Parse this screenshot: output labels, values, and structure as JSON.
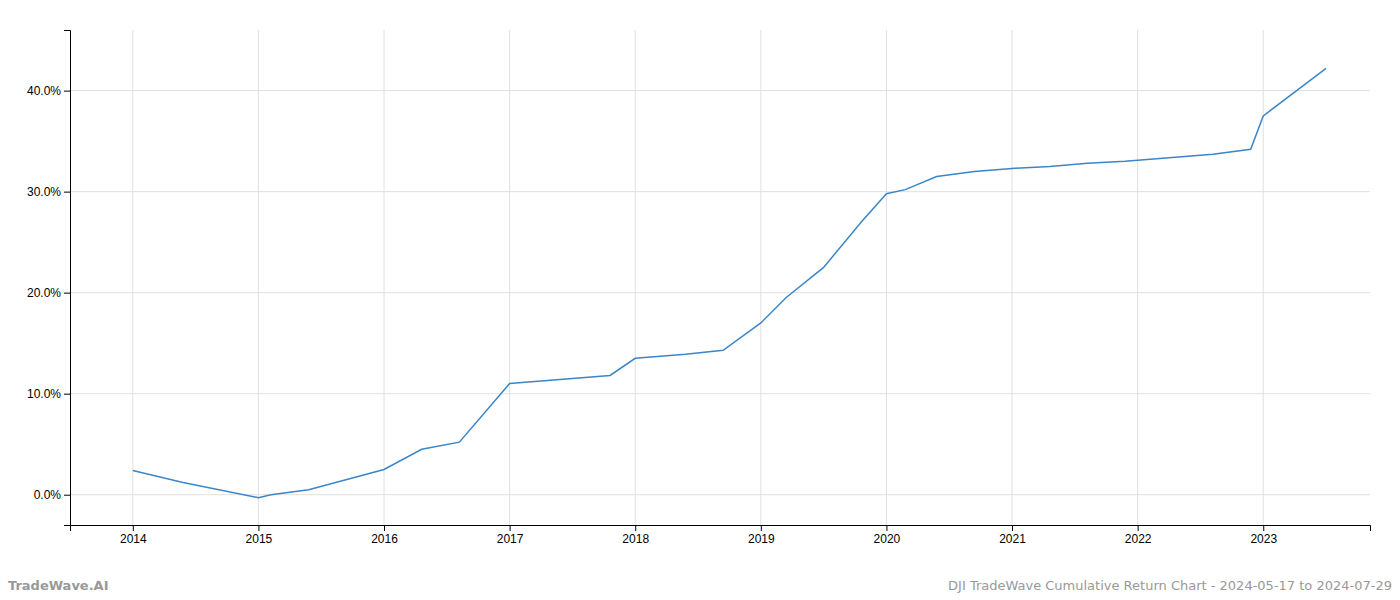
{
  "chart_data": {
    "type": "line",
    "x": [
      2014.0,
      2014.4,
      2015.0,
      2015.1,
      2015.4,
      2016.0,
      2016.3,
      2016.6,
      2017.0,
      2017.2,
      2017.5,
      2017.8,
      2018.0,
      2018.2,
      2018.4,
      2018.7,
      2019.0,
      2019.2,
      2019.5,
      2019.8,
      2020.0,
      2020.15,
      2020.4,
      2020.7,
      2021.0,
      2021.3,
      2021.6,
      2021.9,
      2022.0,
      2022.3,
      2022.6,
      2022.9,
      2023.0,
      2023.5
    ],
    "values": [
      2.4,
      1.2,
      -0.3,
      0.0,
      0.5,
      2.5,
      4.5,
      5.2,
      11.0,
      11.2,
      11.5,
      11.8,
      13.5,
      13.7,
      13.9,
      14.3,
      17.0,
      19.5,
      22.5,
      27.0,
      29.8,
      30.2,
      31.5,
      32.0,
      32.3,
      32.5,
      32.8,
      33.0,
      33.1,
      33.4,
      33.7,
      34.2,
      37.5,
      42.2
    ],
    "color": "#3a86c8",
    "xlim": [
      2013.5,
      2023.85
    ],
    "xticks": [
      2014,
      2015,
      2016,
      2017,
      2018,
      2019,
      2020,
      2021,
      2022,
      2023
    ],
    "ylim": [
      -3,
      46
    ],
    "yticks": [
      {
        "value": 0,
        "label": "0.0%"
      },
      {
        "value": 10,
        "label": "10.0%"
      },
      {
        "value": 20,
        "label": "20.0%"
      },
      {
        "value": 30,
        "label": "30.0%"
      },
      {
        "value": 40,
        "label": "40.0%"
      }
    ],
    "grid": true,
    "annotations": [
      "TradeWave.AI",
      "DJI TradeWave Cumulative Return Chart - 2024-05-17 to 2024-07-29"
    ]
  }
}
